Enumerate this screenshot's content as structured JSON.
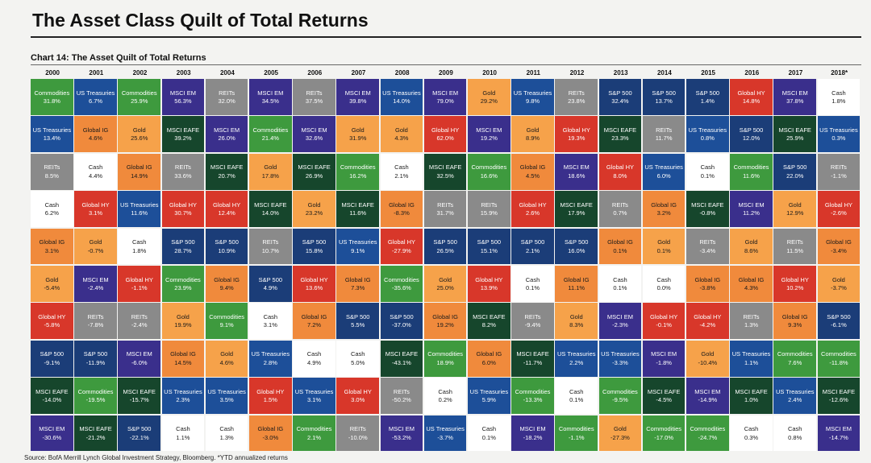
{
  "title": "The Asset Class Quilt of Total Returns",
  "chart_caption": "Chart 14: The Asset Quilt of Total Returns",
  "source": "Source: BofA Merrill Lynch Global Investment Strategy, Bloomberg. *YTD annualized returns",
  "colors": {
    "Commodities": "#3e9a3e",
    "US Treasuries": "#1d4f99",
    "REITs": "#8a8a8a",
    "Cash": "#ffffff",
    "Global IG": "#f08a3c",
    "Gold": "#f6a24a",
    "MSCI EM": "#3a2f8c",
    "MSCI EAFE": "#16462c",
    "S&P 500": "#1b3d78",
    "Global HY": "#d8372a"
  },
  "chart_data": {
    "type": "table",
    "title": "Chart 14: The Asset Quilt of Total Returns",
    "years": [
      "2000",
      "2001",
      "2002",
      "2003",
      "2004",
      "2005",
      "2006",
      "2007",
      "2008",
      "2009",
      "2010",
      "2011",
      "2012",
      "2013",
      "2014",
      "2015",
      "2016",
      "2017",
      "2018*"
    ],
    "columns": [
      [
        [
          "Commodities",
          "31.8%"
        ],
        [
          "US Treasuries",
          "13.4%"
        ],
        [
          "REITs",
          "8.5%"
        ],
        [
          "Cash",
          "6.2%"
        ],
        [
          "Global IG",
          "3.1%"
        ],
        [
          "Gold",
          "-5.4%"
        ],
        [
          "Global HY",
          "-5.8%"
        ],
        [
          "S&P 500",
          "-9.1%"
        ],
        [
          "MSCI EAFE",
          "-14.0%"
        ],
        [
          "MSCI EM",
          "-30.6%"
        ]
      ],
      [
        [
          "US Treasuries",
          "6.7%"
        ],
        [
          "Global IG",
          "4.6%"
        ],
        [
          "Cash",
          "4.4%"
        ],
        [
          "Global HY",
          "3.1%"
        ],
        [
          "Gold",
          "-0.7%"
        ],
        [
          "MSCI EM",
          "-2.4%"
        ],
        [
          "REITs",
          "-7.8%"
        ],
        [
          "S&P 500",
          "-11.9%"
        ],
        [
          "Commodities",
          "-19.5%"
        ],
        [
          "MSCI EAFE",
          "-21.2%"
        ]
      ],
      [
        [
          "Commodities",
          "25.9%"
        ],
        [
          "Gold",
          "25.6%"
        ],
        [
          "Global IG",
          "14.9%"
        ],
        [
          "US Treasuries",
          "11.6%"
        ],
        [
          "Cash",
          "1.8%"
        ],
        [
          "Global HY",
          "-1.1%"
        ],
        [
          "REITs",
          "-2.4%"
        ],
        [
          "MSCI EM",
          "-6.0%"
        ],
        [
          "MSCI EAFE",
          "-15.7%"
        ],
        [
          "S&P 500",
          "-22.1%"
        ]
      ],
      [
        [
          "MSCI EM",
          "56.3%"
        ],
        [
          "MSCI EAFE",
          "39.2%"
        ],
        [
          "REITs",
          "33.6%"
        ],
        [
          "Global HY",
          "30.7%"
        ],
        [
          "S&P 500",
          "28.7%"
        ],
        [
          "Commodities",
          "23.9%"
        ],
        [
          "Gold",
          "19.9%"
        ],
        [
          "Global IG",
          "14.5%"
        ],
        [
          "US Treasuries",
          "2.3%"
        ],
        [
          "Cash",
          "1.1%"
        ]
      ],
      [
        [
          "REITs",
          "32.0%"
        ],
        [
          "MSCI EM",
          "26.0%"
        ],
        [
          "MSCI EAFE",
          "20.7%"
        ],
        [
          "Global HY",
          "12.4%"
        ],
        [
          "S&P 500",
          "10.9%"
        ],
        [
          "Global IG",
          "9.4%"
        ],
        [
          "Commodities",
          "9.1%"
        ],
        [
          "Gold",
          "4.6%"
        ],
        [
          "US Treasuries",
          "3.5%"
        ],
        [
          "Cash",
          "1.3%"
        ]
      ],
      [
        [
          "MSCI EM",
          "34.5%"
        ],
        [
          "Commodities",
          "21.4%"
        ],
        [
          "Gold",
          "17.8%"
        ],
        [
          "MSCI EAFE",
          "14.0%"
        ],
        [
          "REITs",
          "10.7%"
        ],
        [
          "S&P 500",
          "4.9%"
        ],
        [
          "Cash",
          "3.1%"
        ],
        [
          "US Treasuries",
          "2.8%"
        ],
        [
          "Global HY",
          "1.5%"
        ],
        [
          "Global IG",
          "-3.0%"
        ]
      ],
      [
        [
          "REITs",
          "37.5%"
        ],
        [
          "MSCI EM",
          "32.6%"
        ],
        [
          "MSCI EAFE",
          "26.9%"
        ],
        [
          "Gold",
          "23.2%"
        ],
        [
          "S&P 500",
          "15.8%"
        ],
        [
          "Global HY",
          "13.6%"
        ],
        [
          "Global IG",
          "7.2%"
        ],
        [
          "Cash",
          "4.9%"
        ],
        [
          "US Treasuries",
          "3.1%"
        ],
        [
          "Commodities",
          "2.1%"
        ]
      ],
      [
        [
          "MSCI EM",
          "39.8%"
        ],
        [
          "Gold",
          "31.9%"
        ],
        [
          "Commodities",
          "16.2%"
        ],
        [
          "MSCI EAFE",
          "11.6%"
        ],
        [
          "US Treasuries",
          "9.1%"
        ],
        [
          "Global IG",
          "7.3%"
        ],
        [
          "S&P 500",
          "5.5%"
        ],
        [
          "Cash",
          "5.0%"
        ],
        [
          "Global HY",
          "3.0%"
        ],
        [
          "REITs",
          "-10.0%"
        ]
      ],
      [
        [
          "US Treasuries",
          "14.0%"
        ],
        [
          "Gold",
          "4.3%"
        ],
        [
          "Cash",
          "2.1%"
        ],
        [
          "Global IG",
          "-8.3%"
        ],
        [
          "Global HY",
          "-27.9%"
        ],
        [
          "Commodities",
          "-35.6%"
        ],
        [
          "S&P 500",
          "-37.0%"
        ],
        [
          "MSCI EAFE",
          "-43.1%"
        ],
        [
          "REITs",
          "-50.2%"
        ],
        [
          "MSCI EM",
          "-53.2%"
        ]
      ],
      [
        [
          "MSCI EM",
          "79.0%"
        ],
        [
          "Global HY",
          "62.0%"
        ],
        [
          "MSCI EAFE",
          "32.5%"
        ],
        [
          "REITs",
          "31.7%"
        ],
        [
          "S&P 500",
          "26.5%"
        ],
        [
          "Gold",
          "25.0%"
        ],
        [
          "Global IG",
          "19.2%"
        ],
        [
          "Commodities",
          "18.9%"
        ],
        [
          "Cash",
          "0.2%"
        ],
        [
          "US Treasuries",
          "-3.7%"
        ]
      ],
      [
        [
          "Gold",
          "29.2%"
        ],
        [
          "MSCI EM",
          "19.2%"
        ],
        [
          "Commodities",
          "16.6%"
        ],
        [
          "REITs",
          "15.9%"
        ],
        [
          "S&P 500",
          "15.1%"
        ],
        [
          "Global HY",
          "13.9%"
        ],
        [
          "MSCI EAFE",
          "8.2%"
        ],
        [
          "Global IG",
          "6.0%"
        ],
        [
          "US Treasuries",
          "5.9%"
        ],
        [
          "Cash",
          "0.1%"
        ]
      ],
      [
        [
          "US Treasuries",
          "9.8%"
        ],
        [
          "Gold",
          "8.9%"
        ],
        [
          "Global IG",
          "4.5%"
        ],
        [
          "Global HY",
          "2.6%"
        ],
        [
          "S&P 500",
          "2.1%"
        ],
        [
          "Cash",
          "0.1%"
        ],
        [
          "REITs",
          "-9.4%"
        ],
        [
          "MSCI EAFE",
          "-11.7%"
        ],
        [
          "Commodities",
          "-13.3%"
        ],
        [
          "MSCI EM",
          "-18.2%"
        ]
      ],
      [
        [
          "REITs",
          "23.8%"
        ],
        [
          "Global HY",
          "19.3%"
        ],
        [
          "MSCI EM",
          "18.6%"
        ],
        [
          "MSCI EAFE",
          "17.9%"
        ],
        [
          "S&P 500",
          "16.0%"
        ],
        [
          "Global IG",
          "11.1%"
        ],
        [
          "Gold",
          "8.3%"
        ],
        [
          "US Treasuries",
          "2.2%"
        ],
        [
          "Cash",
          "0.1%"
        ],
        [
          "Commodities",
          "-1.1%"
        ]
      ],
      [
        [
          "S&P 500",
          "32.4%"
        ],
        [
          "MSCI EAFE",
          "23.3%"
        ],
        [
          "Global HY",
          "8.0%"
        ],
        [
          "REITs",
          "0.7%"
        ],
        [
          "Global IG",
          "0.1%"
        ],
        [
          "Cash",
          "0.1%"
        ],
        [
          "MSCI EM",
          "-2.3%"
        ],
        [
          "US Treasuries",
          "-3.3%"
        ],
        [
          "Commodities",
          "-9.5%"
        ],
        [
          "Gold",
          "-27.3%"
        ]
      ],
      [
        [
          "S&P 500",
          "13.7%"
        ],
        [
          "REITs",
          "11.7%"
        ],
        [
          "US Treasuries",
          "6.0%"
        ],
        [
          "Global IG",
          "3.2%"
        ],
        [
          "Gold",
          "0.1%"
        ],
        [
          "Cash",
          "0.0%"
        ],
        [
          "Global HY",
          "-0.1%"
        ],
        [
          "MSCI EM",
          "-1.8%"
        ],
        [
          "MSCI EAFE",
          "-4.5%"
        ],
        [
          "Commodities",
          "-17.0%"
        ]
      ],
      [
        [
          "S&P 500",
          "1.4%"
        ],
        [
          "US Treasuries",
          "0.8%"
        ],
        [
          "Cash",
          "0.1%"
        ],
        [
          "MSCI EAFE",
          "-0.8%"
        ],
        [
          "REITs",
          "-3.4%"
        ],
        [
          "Global IG",
          "-3.8%"
        ],
        [
          "Global HY",
          "-4.2%"
        ],
        [
          "Gold",
          "-10.4%"
        ],
        [
          "MSCI EM",
          "-14.9%"
        ],
        [
          "Commodities",
          "-24.7%"
        ]
      ],
      [
        [
          "Global HY",
          "14.8%"
        ],
        [
          "S&P 500",
          "12.0%"
        ],
        [
          "Commodities",
          "11.6%"
        ],
        [
          "MSCI EM",
          "11.2%"
        ],
        [
          "Gold",
          "8.6%"
        ],
        [
          "Global IG",
          "4.3%"
        ],
        [
          "REITs",
          "1.3%"
        ],
        [
          "US Treasuries",
          "1.1%"
        ],
        [
          "MSCI EAFE",
          "1.0%"
        ],
        [
          "Cash",
          "0.3%"
        ]
      ],
      [
        [
          "MSCI EM",
          "37.8%"
        ],
        [
          "MSCI EAFE",
          "25.9%"
        ],
        [
          "S&P 500",
          "22.0%"
        ],
        [
          "Gold",
          "12.9%"
        ],
        [
          "REITs",
          "11.5%"
        ],
        [
          "Global HY",
          "10.2%"
        ],
        [
          "Global IG",
          "9.3%"
        ],
        [
          "Commodities",
          "7.6%"
        ],
        [
          "US Treasuries",
          "2.4%"
        ],
        [
          "Cash",
          "0.8%"
        ]
      ],
      [
        [
          "Cash",
          "1.8%"
        ],
        [
          "US Treasuries",
          "0.3%"
        ],
        [
          "REITs",
          "-1.1%"
        ],
        [
          "Global HY",
          "-2.6%"
        ],
        [
          "Global IG",
          "-3.4%"
        ],
        [
          "Gold",
          "-3.7%"
        ],
        [
          "S&P 500",
          "-6.1%"
        ],
        [
          "Commodities",
          "-11.8%"
        ],
        [
          "MSCI EAFE",
          "-12.6%"
        ],
        [
          "MSCI EM",
          "-14.7%"
        ]
      ]
    ]
  }
}
